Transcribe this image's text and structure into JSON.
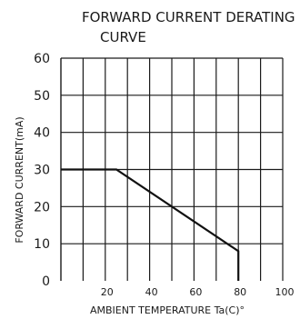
{
  "chart_data": {
    "type": "line",
    "title": [
      "FORWARD CURRENT DERATING",
      "CURVE"
    ],
    "xlabel": "AMBIENT TEMPERATURE Ta(C)°",
    "ylabel": "FORWARD CURRENT(mA)",
    "xlim": [
      0,
      100
    ],
    "ylim": [
      0,
      60
    ],
    "x_ticks": [
      20,
      40,
      60,
      80,
      100
    ],
    "y_ticks": [
      0,
      10,
      20,
      30,
      40,
      50,
      60
    ],
    "x_grid": [
      10,
      20,
      30,
      40,
      50,
      60,
      70,
      80,
      90,
      100
    ],
    "y_grid": [
      10,
      20,
      30,
      40,
      50,
      60
    ],
    "grid": true,
    "series": [
      {
        "x": [
          0,
          25,
          80,
          80
        ],
        "y": [
          30,
          30,
          8,
          0
        ]
      }
    ],
    "colors": {
      "grid": "#1a1a1a",
      "line": "#111111"
    }
  }
}
